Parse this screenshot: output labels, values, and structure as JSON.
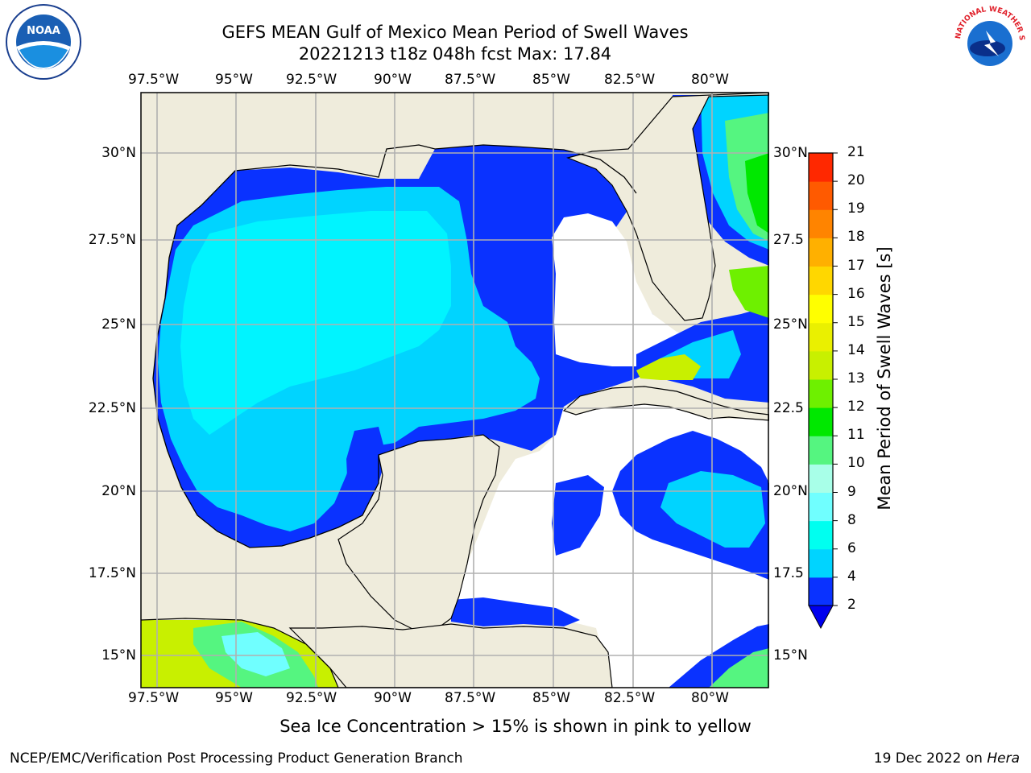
{
  "title": {
    "line1": "GEFS MEAN Gulf of Mexico Mean Period of Swell Waves",
    "line2": "20221213 t18z 048h fcst   Max: 17.84"
  },
  "map": {
    "lon_ticks": [
      "97.5°W",
      "95°W",
      "92.5°W",
      "90°W",
      "87.5°W",
      "85°W",
      "82.5°W",
      "80°W"
    ],
    "lat_ticks_left": [
      "30°N",
      "27.5°N",
      "25°N",
      "22.5°N",
      "20°N",
      "17.5°N",
      "15°N"
    ],
    "lat_ticks_right": [
      "30°N",
      "27.5",
      "25°N",
      "22.5",
      "20°N",
      "17.5",
      "15°N"
    ],
    "land_color": "#efecdc",
    "ocean_nodata_color": "#ffffff",
    "grid_color": "#b0b0b0"
  },
  "colorbar": {
    "title": "Mean Period of Swell Waves [s]",
    "labels": [
      "2",
      "4",
      "6",
      "8",
      "9",
      "10",
      "11",
      "12",
      "13",
      "14",
      "15",
      "16",
      "17",
      "18",
      "19",
      "20",
      "21"
    ],
    "colors": [
      "#0a32ff",
      "#00d4ff",
      "#00fff0",
      "#70ffff",
      "#a8ffe8",
      "#55f580",
      "#00e800",
      "#6ef000",
      "#c8f000",
      "#eaf000",
      "#ffff00",
      "#ffd700",
      "#ffb000",
      "#ff8400",
      "#ff5a00",
      "#ff2800",
      "#ff0000"
    ],
    "extend_color": "#0000ee"
  },
  "caption": "Sea Ice Concentration > 15% is shown in pink to yellow",
  "footer": {
    "left": "NCEP/EMC/Verification Post Processing Product Generation Branch",
    "right_date": "19 Dec 2022 on ",
    "right_host": "Hera"
  },
  "logos": {
    "noaa_text": "NOAA",
    "nws_text": "NATIONAL WEATHER SERVICE"
  }
}
